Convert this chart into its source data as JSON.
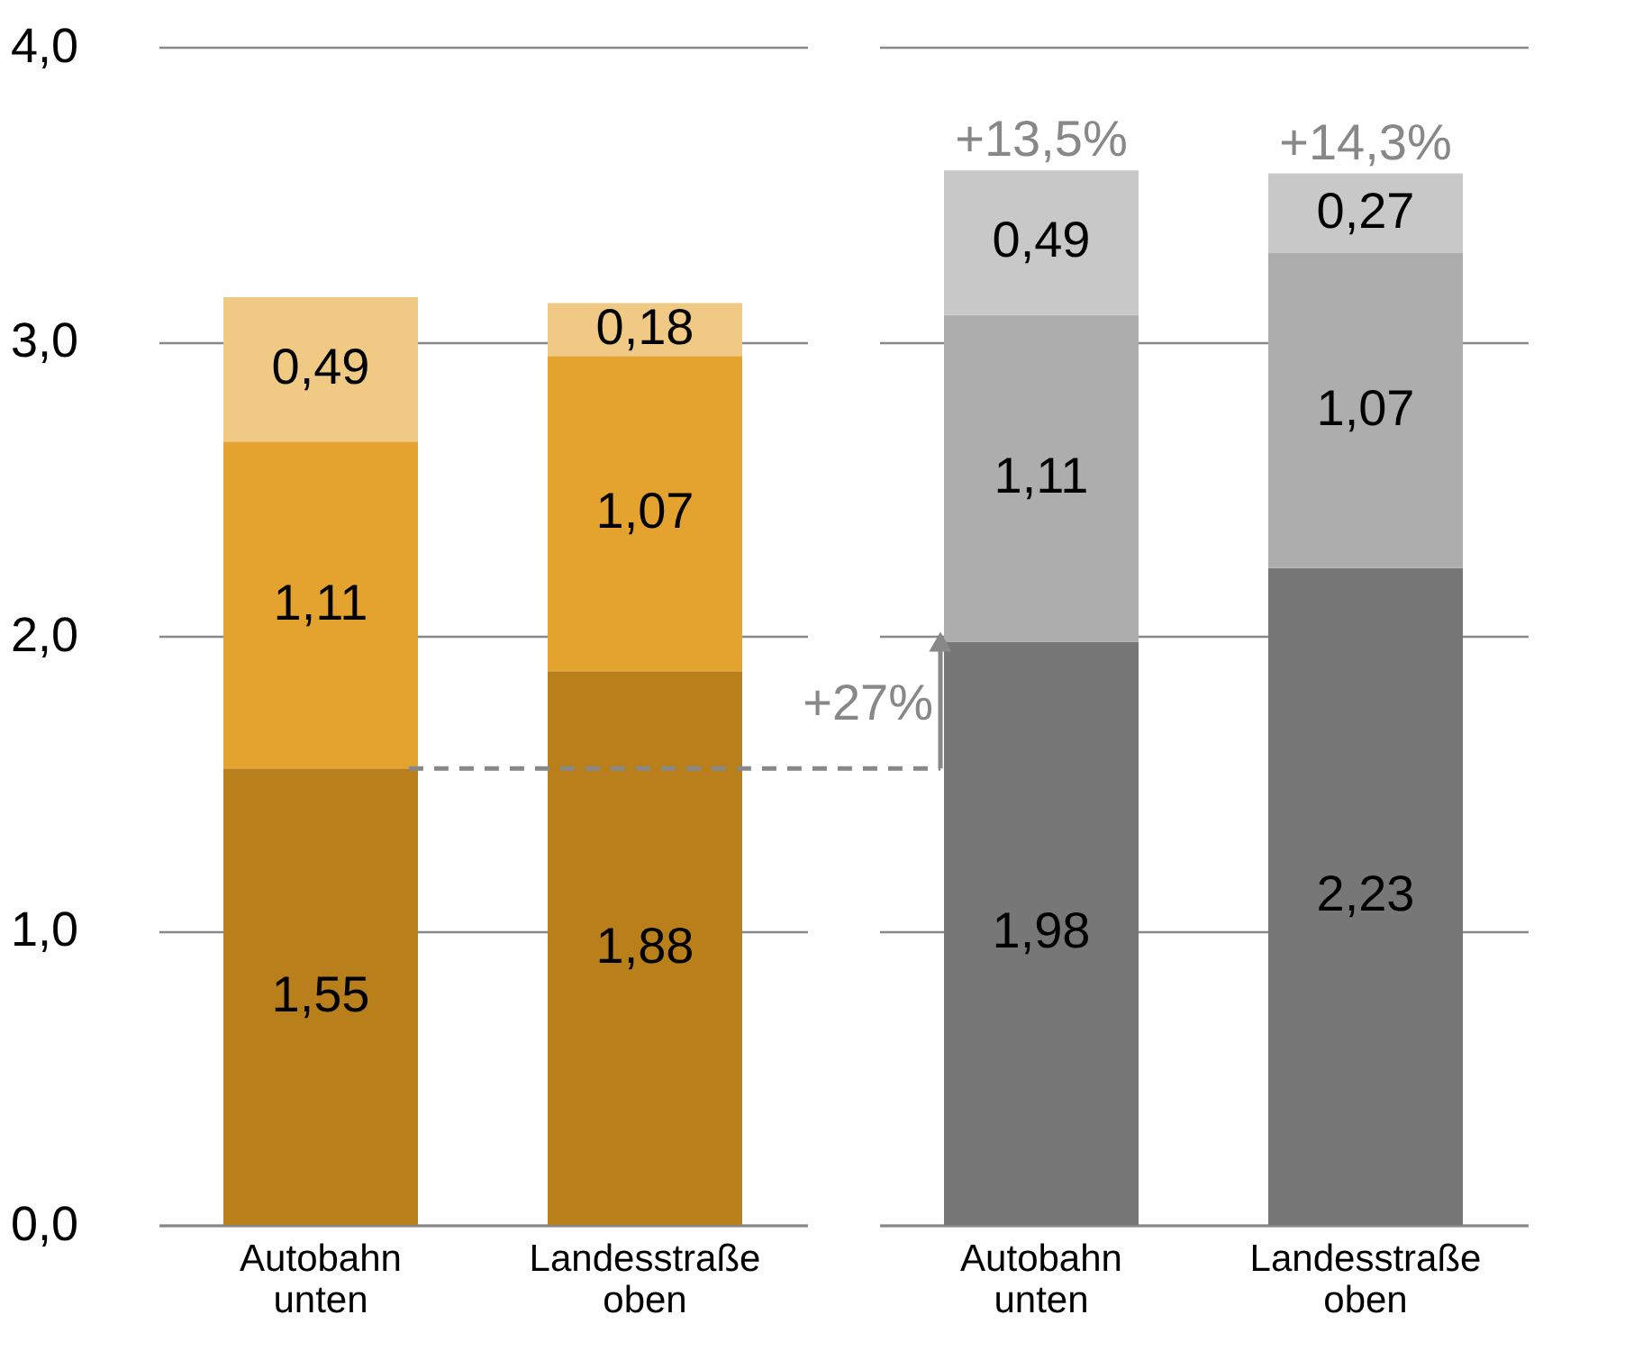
{
  "chart_data": [
    {
      "type": "bar",
      "stacked": true,
      "categories": [
        "Autobahn unten",
        "Landesstraße oben"
      ],
      "series": [
        {
          "color": "#b87f1a",
          "values": [
            1.55,
            1.88
          ],
          "value_labels": [
            "1,55",
            "1,88"
          ]
        },
        {
          "color": "#e4a32f",
          "values": [
            1.11,
            1.07
          ],
          "value_labels": [
            "1,11",
            "1,07"
          ]
        },
        {
          "color": "#f0c985",
          "values": [
            0.49,
            0.18
          ],
          "value_labels": [
            "0,49",
            "0,18"
          ]
        }
      ],
      "ylim": [
        0,
        4
      ],
      "yticks": [
        {
          "value": 0,
          "label": "0,0"
        },
        {
          "value": 1,
          "label": "1,0"
        },
        {
          "value": 2,
          "label": "2,0"
        },
        {
          "value": 3,
          "label": "3,0"
        },
        {
          "value": 4,
          "label": "4,0"
        }
      ],
      "grid": "y"
    },
    {
      "type": "bar",
      "stacked": true,
      "categories": [
        "Autobahn unten",
        "Landesstraße oben"
      ],
      "series": [
        {
          "color": "#777777",
          "values": [
            1.98,
            2.23
          ],
          "value_labels": [
            "1,98",
            "2,23"
          ]
        },
        {
          "color": "#adadad",
          "values": [
            1.11,
            1.07
          ],
          "value_labels": [
            "1,11",
            "1,07"
          ]
        },
        {
          "color": "#c8c8c8",
          "values": [
            0.49,
            0.27
          ],
          "value_labels": [
            "0,49",
            "0,27"
          ]
        }
      ],
      "ylim": [
        0,
        4
      ],
      "yticks": [
        0,
        1,
        2,
        3,
        4
      ],
      "grid": "y",
      "tick_labels": "x",
      "annotations": [
        {
          "text": "+13,5%",
          "x": "Autobahn unten",
          "y": 3.58
        },
        {
          "text": "+14,3%",
          "x": "Landesstraße oben",
          "y": 3.57
        },
        "+27%"
      ],
      "ref_lines": [
        {
          "axis": "y",
          "value": 1.55,
          "color": "#888888",
          "line_style": "dashed"
        }
      ]
    }
  ]
}
